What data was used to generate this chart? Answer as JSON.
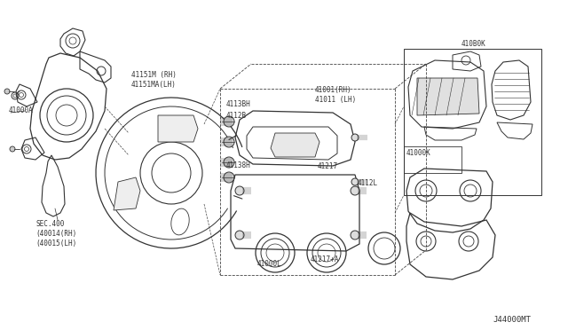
{
  "bg_color": "#ffffff",
  "line_color": "#333333",
  "text_color": "#333333",
  "dashed_color": "#444444",
  "diagram_id": "J44000MT",
  "fs": 5.5,
  "fm": 6.5,
  "labels": {
    "part_41000A": "41000A",
    "part_sec400": "SEC.400\n(40014(RH)\n(40015(LH)",
    "part_41151": "41151M (RH)\n41151MA(LH)",
    "part_41001": "41001(RH)\n41011 (LH)",
    "part_41000K": "41000K",
    "part_410B0K": "410B0K",
    "part_4113BH": "4113BH",
    "part_4112B": "4112B",
    "part_4113BH2": "41138H",
    "part_41217": "41217",
    "part_4112L": "4112L",
    "part_41217A": "41217+A",
    "part_41000L": "41000L"
  }
}
